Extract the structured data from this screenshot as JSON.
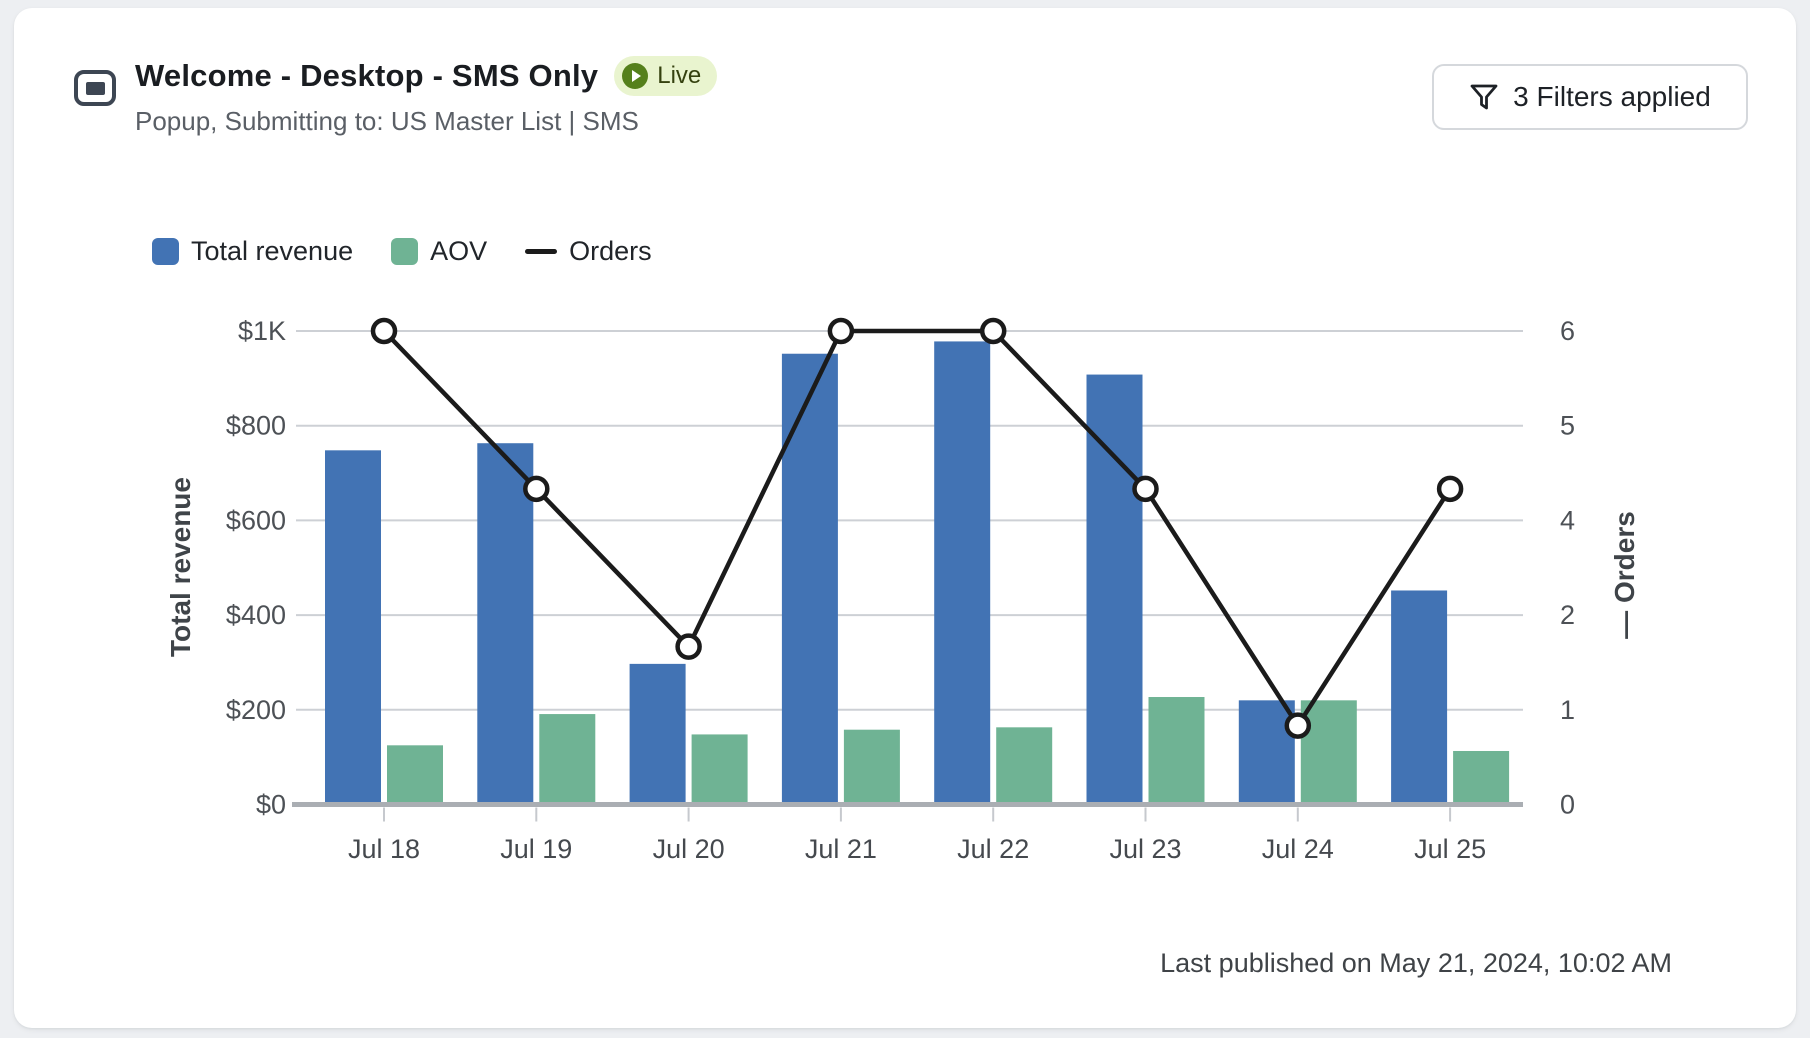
{
  "header": {
    "title": "Welcome - Desktop - SMS Only",
    "status_badge": {
      "label": "Live",
      "bg": "#e9f4cf",
      "dot_color": "#55801c"
    },
    "subtitle": "Popup, Submitting to: US Master List | SMS",
    "filters_button": {
      "label": "3 Filters applied"
    }
  },
  "legend": [
    {
      "label": "Total revenue",
      "swatch": "square",
      "color": "#4273b4"
    },
    {
      "label": "AOV",
      "swatch": "square",
      "color": "#6fb394"
    },
    {
      "label": "Orders",
      "swatch": "line",
      "color": "#1b1b1b"
    }
  ],
  "chart_data": {
    "type": "bar",
    "subtype": "grouped bars with line overlay (dual axis)",
    "categories": [
      "Jul 18",
      "Jul 19",
      "Jul 20",
      "Jul 21",
      "Jul 22",
      "Jul 23",
      "Jul 24",
      "Jul 25"
    ],
    "series": [
      {
        "name": "Total revenue",
        "type": "bar",
        "axis": "left",
        "color": "#4273b4",
        "values": [
          748,
          763,
          297,
          952,
          978,
          908,
          220,
          452
        ]
      },
      {
        "name": "AOV",
        "type": "bar",
        "axis": "left",
        "color": "#6fb394",
        "values": [
          125,
          191,
          148,
          158,
          163,
          227,
          220,
          113
        ]
      },
      {
        "name": "Orders",
        "type": "line",
        "axis": "right",
        "color": "#1b1b1b",
        "marker": "open-circle",
        "values": [
          6,
          4,
          2,
          6,
          6,
          4,
          1,
          4
        ]
      }
    ],
    "left_axis": {
      "label": "Total revenue",
      "tick_labels": [
        "$1K",
        "$800",
        "$600",
        "$400",
        "$200",
        "$0"
      ],
      "range": [
        0,
        1000
      ]
    },
    "right_axis": {
      "label": "— Orders",
      "tick_labels": [
        "6",
        "5",
        "4",
        "2",
        "1",
        "0"
      ],
      "range": [
        0,
        6
      ]
    },
    "grid": true,
    "legend_position": "top-left"
  },
  "footer": {
    "last_published": "Last published on May 21, 2024, 10:02 AM"
  }
}
